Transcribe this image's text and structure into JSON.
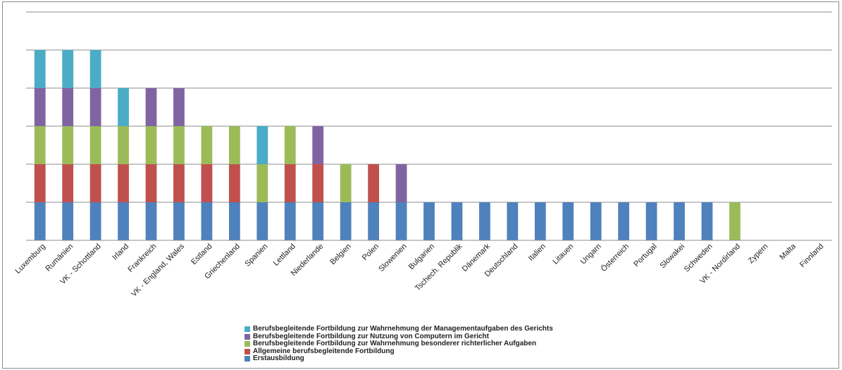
{
  "chart_data": {
    "type": "bar",
    "stacked": true,
    "grid": true,
    "legend_position": "bottom",
    "ylim": [
      0,
      6
    ],
    "categories": [
      "Luxemburg",
      "Rumänien",
      "VK - Schottland",
      "Irland",
      "Frankreich",
      "VK - England,  Wales",
      "Estland",
      "Griechenland",
      "Spanien",
      "Lettland",
      "Niederlande",
      "Belgien",
      "Polen",
      "Slowenien",
      "Bulgarien",
      "Tschech. Republik",
      "Dänemark",
      "Deutschland",
      "Italien",
      "Litauen",
      "Ungarn",
      "Österreich",
      "Portugal",
      "Slowakei",
      "Schweden",
      "VK - Nordirland",
      "Zypern",
      "Malta",
      "Finnland"
    ],
    "series": [
      {
        "name": "Erstausbildung",
        "color": "#4f81bd",
        "values": [
          1,
          1,
          1,
          1,
          1,
          1,
          1,
          1,
          1,
          1,
          1,
          1,
          1,
          1,
          1,
          1,
          1,
          1,
          1,
          1,
          1,
          1,
          1,
          1,
          1,
          0,
          0,
          0,
          0
        ]
      },
      {
        "name": "Allgemeine berufsbegleitende Fortbildung",
        "color": "#c0504d",
        "values": [
          1,
          1,
          1,
          1,
          1,
          1,
          1,
          1,
          0,
          1,
          1,
          0,
          1,
          0,
          0,
          0,
          0,
          0,
          0,
          0,
          0,
          0,
          0,
          0,
          0,
          0,
          0,
          0,
          0
        ]
      },
      {
        "name": "Berufsbegleitende Fortbildung zur Wahrnehmung besonderer richterlicher Aufgaben",
        "color": "#9bbb59",
        "values": [
          1,
          1,
          1,
          1,
          1,
          1,
          1,
          1,
          1,
          1,
          0,
          1,
          0,
          0,
          0,
          0,
          0,
          0,
          0,
          0,
          0,
          0,
          0,
          0,
          0,
          1,
          0,
          0,
          0
        ]
      },
      {
        "name": "Berufsbegleitende Fortbildung zur Nutzung von Computern im Gericht",
        "color": "#8064a2",
        "values": [
          1,
          1,
          1,
          0,
          1,
          1,
          0,
          0,
          0,
          0,
          1,
          0,
          0,
          1,
          0,
          0,
          0,
          0,
          0,
          0,
          0,
          0,
          0,
          0,
          0,
          0,
          0,
          0,
          0
        ]
      },
      {
        "name": "Berufsbegleitende Fortbildung zur Wahrnehmung der Managementaufgaben des Gerichts",
        "color": "#4bacc6",
        "values": [
          1,
          1,
          1,
          1,
          0,
          0,
          0,
          0,
          1,
          0,
          0,
          0,
          0,
          0,
          0,
          0,
          0,
          0,
          0,
          0,
          0,
          0,
          0,
          0,
          0,
          0,
          0,
          0,
          0
        ]
      }
    ],
    "legend_order": [
      4,
      3,
      2,
      1,
      0
    ]
  }
}
